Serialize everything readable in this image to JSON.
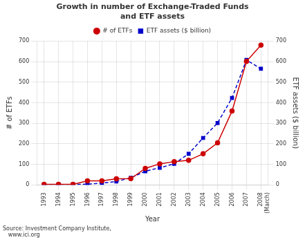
{
  "chart_data": {
    "type": "line",
    "title": "Growth in number of Exchange-Traded Funds\nand ETF assets",
    "x_label": "Year",
    "y_label": "# of ETFs",
    "y2_label": "ETF assets ($ billion)",
    "annotation": "Source: Investment Company Institute,\n   www.ici.org",
    "categories": [
      "1993",
      "1994",
      "1995",
      "1996",
      "1997",
      "1998",
      "1999",
      "2000",
      "2001",
      "2002",
      "2003",
      "2004",
      "2005",
      "2006",
      "2007",
      "2008\n(March)"
    ],
    "series": [
      {
        "name": "# of ETFs",
        "color": "#cc0000",
        "marker": "circle",
        "line_style": "solid",
        "values": [
          2,
          2,
          2,
          19,
          19,
          29,
          30,
          80,
          102,
          113,
          119,
          151,
          204,
          359,
          601,
          680
        ]
      },
      {
        "name": "ETF assets ($ billion)",
        "color": "#0000cc",
        "marker": "square",
        "line_style": "dashed",
        "axis": "y2",
        "values": [
          1,
          1,
          2,
          3,
          8,
          16,
          34,
          66,
          83,
          102,
          151,
          228,
          301,
          423,
          608,
          565
        ]
      }
    ],
    "ylim": [
      0,
      700
    ],
    "yticks": [
      0,
      100,
      200,
      300,
      400,
      500,
      600,
      700
    ],
    "y2lim": [
      0,
      700
    ],
    "y2ticks": [
      0,
      100,
      200,
      300,
      400,
      500,
      600,
      700
    ],
    "grid": true,
    "legend": "top"
  }
}
